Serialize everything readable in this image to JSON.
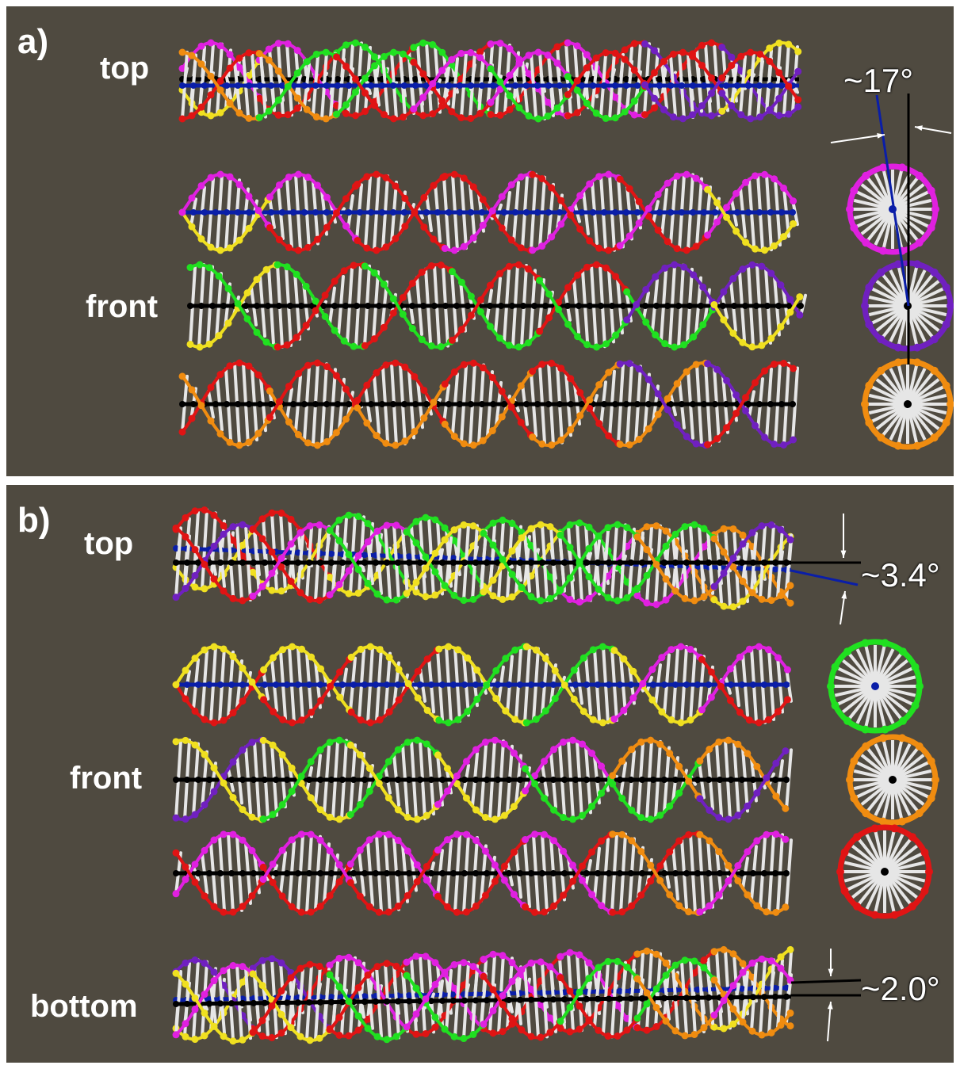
{
  "panels": [
    {
      "label": "a)",
      "views": {
        "top": "top",
        "front": "front"
      },
      "angle": "~17°"
    },
    {
      "label": "b)",
      "views": {
        "top": "top",
        "front": "front",
        "bottom": "bottom"
      },
      "angles": {
        "top": "~3.4°",
        "bottom": "~2.0°"
      }
    }
  ],
  "colors": {
    "background": "#4f4a40",
    "divider": "#ffffff",
    "base_pair": "#e6e6e6",
    "axis_black": "#000000",
    "axis_blue": "#0a1ea8",
    "strand_red": "#e01414",
    "strand_magenta": "#e020e0",
    "strand_yellow": "#f0e020",
    "strand_green": "#20e020",
    "strand_orange": "#f08c10",
    "strand_purple": "#7020c0"
  }
}
